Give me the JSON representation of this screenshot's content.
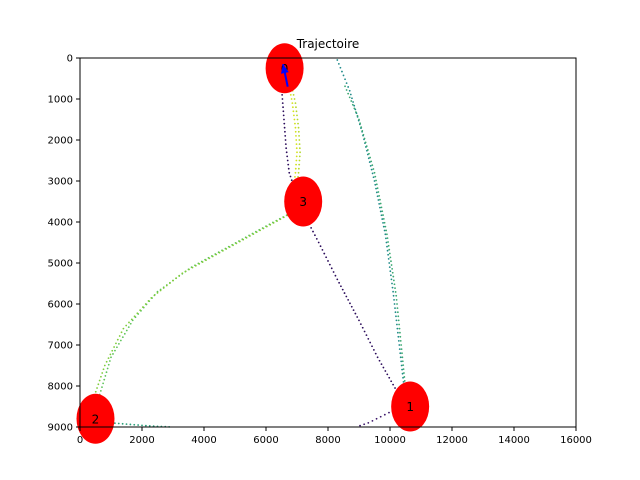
{
  "chart_data": {
    "type": "scatter",
    "title": "Trajectoire",
    "xlabel": "",
    "ylabel": "",
    "xlim": [
      0,
      16000
    ],
    "ylim": [
      9000,
      0
    ],
    "y_inverted": true,
    "x_ticks": [
      "0",
      "2000",
      "4000",
      "6000",
      "8000",
      "10000",
      "12000",
      "14000",
      "16000"
    ],
    "x_tick_values": [
      0,
      2000,
      4000,
      6000,
      8000,
      10000,
      12000,
      14000,
      16000
    ],
    "y_ticks": [
      "0",
      "1000",
      "2000",
      "3000",
      "4000",
      "5000",
      "6000",
      "7000",
      "8000",
      "9000"
    ],
    "y_tick_values": [
      0,
      1000,
      2000,
      3000,
      4000,
      5000,
      6000,
      7000,
      8000,
      9000
    ],
    "grid": false,
    "legend": "none",
    "waypoints": [
      {
        "label": "0",
        "x": 6600,
        "y": 250,
        "color": "#ff0000"
      },
      {
        "label": "1",
        "x": 10650,
        "y": 8500,
        "color": "#ff0000"
      },
      {
        "label": "2",
        "x": 500,
        "y": 8800,
        "color": "#ff0000"
      },
      {
        "label": "3",
        "x": 7200,
        "y": 3500,
        "color": "#ff0000"
      }
    ],
    "heading_arrow": {
      "x_from": 6700,
      "y_from": 700,
      "x_to": 6550,
      "y_to": 150,
      "color": "#0000ff"
    },
    "series": [
      {
        "color": "#2a0b5a",
        "points": [
          [
            6500,
            700
          ],
          [
            6550,
            1200
          ],
          [
            6600,
            1700
          ],
          [
            6650,
            2200
          ],
          [
            6750,
            2800
          ],
          [
            7150,
            3700
          ],
          [
            7700,
            4500
          ],
          [
            8300,
            5400
          ],
          [
            9000,
            6400
          ],
          [
            9600,
            7300
          ],
          [
            10350,
            8300
          ]
        ]
      },
      {
        "color": "#3a1468",
        "points": [
          [
            10500,
            8500
          ],
          [
            10100,
            8600
          ],
          [
            9700,
            8750
          ],
          [
            9300,
            8900
          ],
          [
            8900,
            9000
          ]
        ]
      },
      {
        "color": "#1f8a8a",
        "points": [
          [
            8300,
            50
          ],
          [
            8700,
            800
          ],
          [
            9100,
            1800
          ],
          [
            9500,
            3000
          ],
          [
            9850,
            4300
          ],
          [
            10100,
            5700
          ],
          [
            10300,
            7000
          ],
          [
            10450,
            8000
          ],
          [
            10600,
            8400
          ]
        ]
      },
      {
        "color": "#2aa07a",
        "points": [
          [
            500,
            8850
          ],
          [
            1000,
            8900
          ],
          [
            1500,
            8930
          ],
          [
            2000,
            8960
          ],
          [
            2500,
            8985
          ],
          [
            3000,
            9000
          ]
        ]
      },
      {
        "color": "#3aa870",
        "points": [
          [
            10550,
            8450
          ],
          [
            10400,
            7300
          ],
          [
            10200,
            5800
          ],
          [
            9900,
            4300
          ],
          [
            9500,
            2800
          ],
          [
            9000,
            1500
          ],
          [
            8500,
            600
          ]
        ]
      },
      {
        "color": "#5ec45a",
        "points": [
          [
            600,
            8300
          ],
          [
            1000,
            7300
          ],
          [
            1700,
            6400
          ],
          [
            2500,
            5700
          ],
          [
            3600,
            5100
          ],
          [
            4800,
            4600
          ],
          [
            6000,
            4100
          ],
          [
            7000,
            3700
          ]
        ]
      },
      {
        "color": "#7fcc3a",
        "points": [
          [
            300,
            8600
          ],
          [
            800,
            7500
          ],
          [
            1400,
            6600
          ],
          [
            2300,
            5850
          ],
          [
            3300,
            5250
          ],
          [
            4500,
            4750
          ],
          [
            5700,
            4250
          ],
          [
            6900,
            3750
          ]
        ]
      },
      {
        "color": "#b4d92c",
        "points": [
          [
            6800,
            600
          ],
          [
            6950,
            1100
          ],
          [
            7050,
            1700
          ],
          [
            7100,
            2300
          ],
          [
            7050,
            2800
          ],
          [
            7000,
            3100
          ]
        ]
      },
      {
        "color": "#d3e21b",
        "points": [
          [
            6700,
            500
          ],
          [
            6850,
            1100
          ],
          [
            6950,
            1700
          ],
          [
            7000,
            2300
          ],
          [
            6950,
            2800
          ],
          [
            6900,
            3100
          ]
        ]
      }
    ]
  }
}
